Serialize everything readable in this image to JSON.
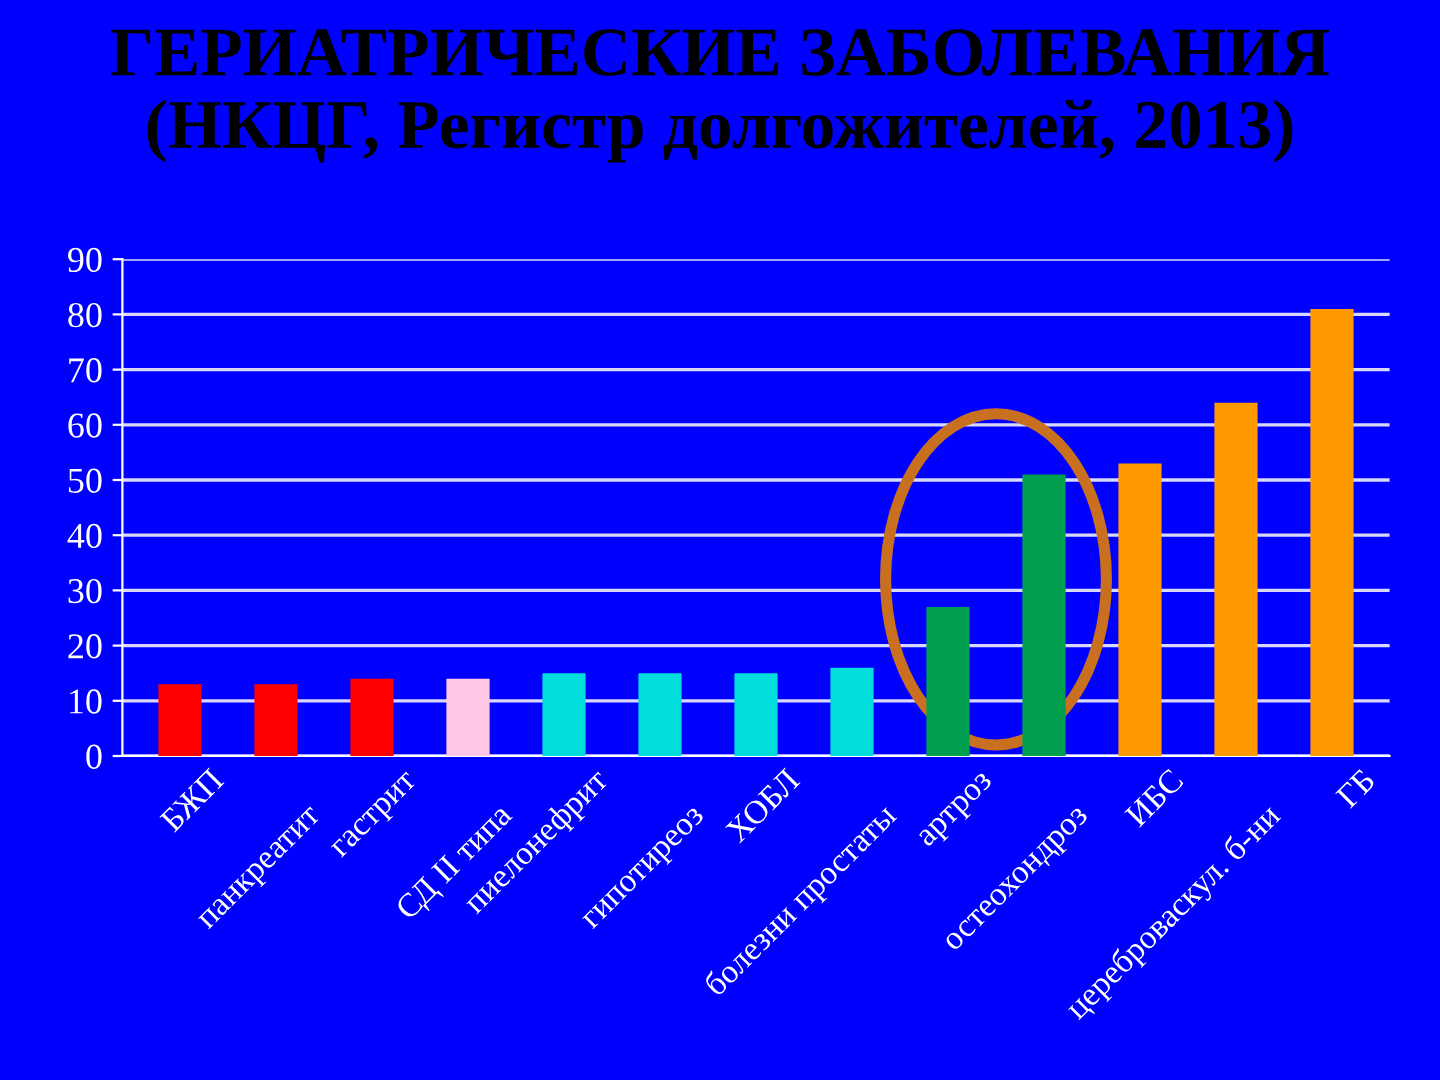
{
  "chart_data": {
    "type": "bar",
    "title": "ГЕРИАТРИЧЕСКИЕ ЗАБОЛЕВАНИЯ\n(НКЦГ, Регистр долгожителей, 2013)",
    "categories": [
      "БЖП",
      "панкреатит",
      "гастрит",
      "СД II типа",
      "пиелонефрит",
      "гипотиреоз",
      "ХОБЛ",
      "болезни простаты",
      "артроз",
      "остеохондроз",
      "ИБС",
      "цереброваскул. б-ни",
      "ГБ"
    ],
    "values": [
      13,
      13,
      14,
      14,
      15,
      15,
      15,
      16,
      27,
      51,
      53,
      64,
      81
    ],
    "colors": [
      "#ff0000",
      "#ff0000",
      "#ff0000",
      "#ffc8e6",
      "#00dede",
      "#00dede",
      "#00dede",
      "#00dede",
      "#00a050",
      "#00a050",
      "#ff9900",
      "#ff9900",
      "#ff9900"
    ],
    "ylim": [
      0,
      90
    ],
    "yticks": [
      0,
      10,
      20,
      30,
      40,
      50,
      60,
      70,
      80,
      90
    ],
    "grid": "y"
  }
}
